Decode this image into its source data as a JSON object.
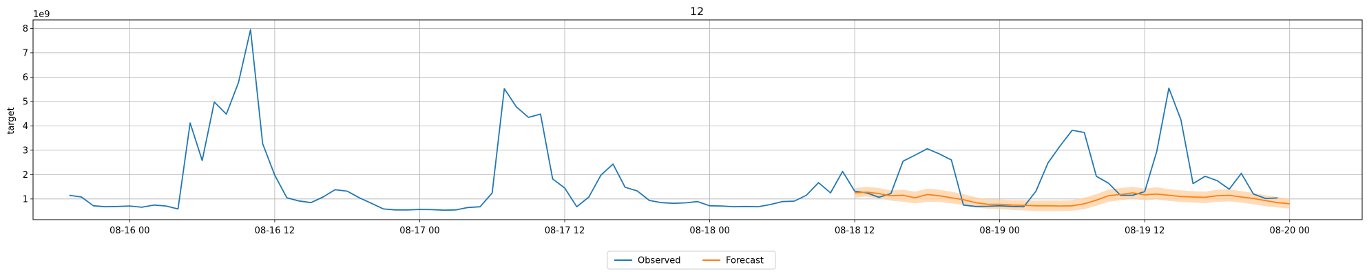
{
  "chart_data": {
    "type": "line",
    "title": "12",
    "xlabel": "",
    "ylabel": "target",
    "y_scale_label": "1e9",
    "grid": true,
    "legend_placement": "bottom-center",
    "xlim": [
      "2025-08-15 16:00",
      "2025-08-20 06:00"
    ],
    "ylim": [
      0.15,
      8.35
    ],
    "x_tick_labels": [
      "08-16 00",
      "08-16 12",
      "08-17 00",
      "08-17 12",
      "08-18 00",
      "08-18 12",
      "08-19 00",
      "08-19 12",
      "08-20 00"
    ],
    "y_ticks": [
      1,
      2,
      3,
      4,
      5,
      6,
      7,
      8
    ],
    "colors": {
      "observed": "#1f77b4",
      "forecast": "#ff7f0e",
      "band": "#ffcfa0"
    },
    "series": [
      {
        "name": "Observed",
        "x_start": "2025-08-15 19:00",
        "step_hours": 1,
        "values": [
          1.15,
          1.08,
          0.72,
          0.68,
          0.69,
          0.71,
          0.66,
          0.75,
          0.71,
          0.59,
          4.12,
          2.58,
          4.98,
          4.48,
          5.78,
          7.95,
          3.27,
          1.98,
          1.05,
          0.92,
          0.85,
          1.08,
          1.38,
          1.32,
          1.05,
          0.82,
          0.59,
          0.55,
          0.55,
          0.57,
          0.56,
          0.54,
          0.55,
          0.65,
          0.68,
          1.25,
          5.53,
          4.78,
          4.35,
          4.48,
          1.82,
          1.45,
          0.68,
          1.08,
          1.98,
          2.43,
          1.48,
          1.33,
          0.94,
          0.85,
          0.82,
          0.84,
          0.89,
          0.72,
          0.71,
          0.68,
          0.69,
          0.68,
          0.77,
          0.89,
          0.91,
          1.15,
          1.67,
          1.25,
          2.13,
          1.32,
          1.25,
          1.07,
          1.22,
          2.55,
          2.8,
          3.06,
          2.85,
          2.6,
          0.75,
          0.69,
          0.7,
          0.72,
          0.69,
          0.68,
          1.32,
          2.48,
          3.18,
          3.82,
          3.73,
          1.93,
          1.65,
          1.15,
          1.15,
          1.3,
          2.95,
          5.55,
          4.25,
          1.63,
          1.93,
          1.75,
          1.4,
          2.05,
          1.2,
          1.02,
          1.04
        ]
      },
      {
        "name": "Forecast",
        "x_start": "2025-08-18 12:00",
        "step_hours": 1,
        "values": [
          1.25,
          1.28,
          1.22,
          1.13,
          1.15,
          1.05,
          1.18,
          1.13,
          1.05,
          0.97,
          0.85,
          0.78,
          0.78,
          0.75,
          0.74,
          0.72,
          0.72,
          0.71,
          0.72,
          0.8,
          0.95,
          1.13,
          1.18,
          1.25,
          1.17,
          1.2,
          1.15,
          1.1,
          1.08,
          1.07,
          1.13,
          1.15,
          1.08,
          1.02,
          0.93,
          0.85,
          0.8
        ],
        "lower": [
          1.05,
          1.1,
          1.02,
          0.93,
          0.88,
          0.82,
          0.88,
          0.88,
          0.82,
          0.75,
          0.65,
          0.6,
          0.58,
          0.55,
          0.53,
          0.5,
          0.5,
          0.5,
          0.52,
          0.58,
          0.72,
          0.88,
          0.95,
          1.0,
          0.95,
          0.98,
          0.92,
          0.88,
          0.85,
          0.83,
          0.88,
          0.9,
          0.85,
          0.78,
          0.7,
          0.65,
          0.6
        ],
        "upper": [
          1.45,
          1.5,
          1.45,
          1.35,
          1.38,
          1.3,
          1.42,
          1.38,
          1.3,
          1.2,
          1.07,
          0.98,
          0.98,
          0.95,
          0.95,
          0.93,
          0.94,
          0.93,
          0.95,
          1.05,
          1.2,
          1.38,
          1.45,
          1.5,
          1.42,
          1.48,
          1.4,
          1.35,
          1.32,
          1.3,
          1.38,
          1.4,
          1.32,
          1.25,
          1.15,
          1.08,
          1.0
        ]
      }
    ]
  }
}
